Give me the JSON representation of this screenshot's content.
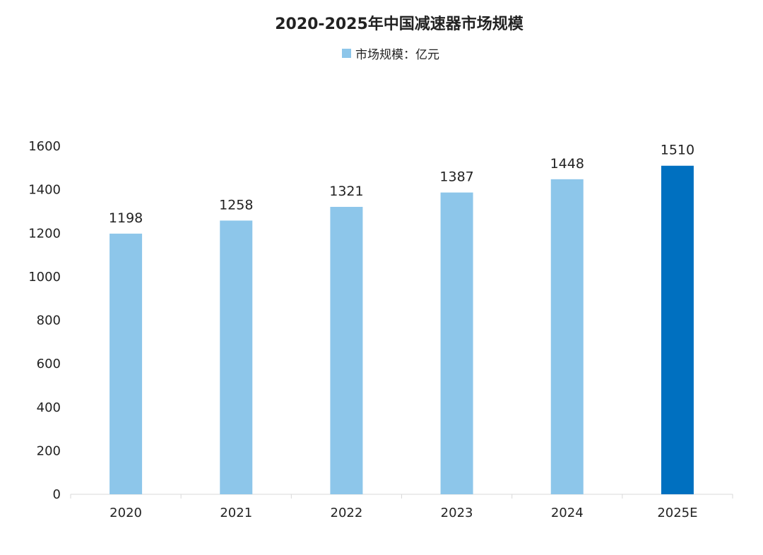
{
  "chart_data": {
    "type": "bar",
    "title": "2020-2025年中国减速器市场规模",
    "categories": [
      "2020",
      "2021",
      "2022",
      "2023",
      "2024",
      "2025E"
    ],
    "series": [
      {
        "name": "市场规模：亿元",
        "values": [
          1198,
          1258,
          1321,
          1387,
          1448,
          1510
        ]
      }
    ],
    "ylim": [
      0,
      1600
    ],
    "yticks": [
      0,
      200,
      400,
      600,
      800,
      1000,
      1200,
      1400,
      1600
    ],
    "xlabel": "",
    "ylabel": "",
    "grid": false,
    "legend_position": "top-center",
    "colors": {
      "bar": "#8DC6EA",
      "highlight": "#0070C0",
      "highlight_category": "2025E",
      "axis": "#D9D9D9"
    },
    "data_labels": true
  }
}
